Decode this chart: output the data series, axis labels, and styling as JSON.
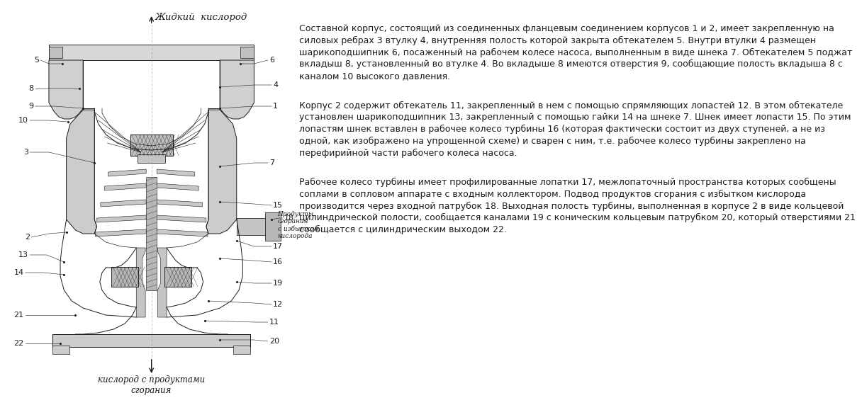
{
  "bg_color": "#ffffff",
  "text_color": "#1a1a1a",
  "line_color": "#1a1a1a",
  "title_top": "Жидкий  кислород",
  "title_bottom_line1": "кислород с продуктами",
  "title_bottom_line2": "сгорания",
  "label_inlet_line1": "Продукты",
  "label_inlet_line2": "сгорания",
  "label_inlet_line3": "с избытком",
  "label_inlet_line4": "кислорода",
  "para1_lines": [
    "Составной корпус, состоящий из соединенных фланцевым соединением корпусов 1 и 2, имеет закрепленную на",
    "силовых ребрах 3 втулку 4, внутренняя полость которой закрыта обтекателем 5. Внутри втулки 4 размещен",
    "шарикоподшипник 6, посаженный на рабочем колесе насоса, выполненным в виде шнека 7. Обтекателем 5 поджат",
    "вкладыш 8, установленный во втулке 4. Во вкладыше 8 имеются отверстия 9, сообщающие полость вкладыша 8 с",
    "каналом 10 высокого давления."
  ],
  "para2_lines": [
    "Корпус 2 содержит обтекатель 11, закрепленный в нем с помощью спрямляющих лопастей 12. В этом обтекателе",
    "установлен шарикоподшипник 13, закрепленный с помощью гайки 14 на шнеке 7. Шнек имеет лопасти 15. По этим",
    "лопастям шнек вставлен в рабочее колесо турбины 16 (которая фактически состоит из двух ступеней, а не из",
    "одной, как изображено на упрощенной схеме) и сварен с ним, т.е. рабочее колесо турбины закреплено на",
    "перефирийной части рабочего колеса насоса."
  ],
  "para3_lines": [
    "Рабочее колесо турбины имеет профилированные лопатки 17, межлопаточный пространства которых сообщены",
    "соплами в сопловом аппарате с входным коллектором. Подвод продуктов сгорания с избытком кислорода",
    "производится через входной патрубок 18. Выходная полость турбины, выполненная в корпусе 2 в виде кольцевой",
    "цилиндрической полости, сообщается каналами 19 с коническим кольцевым патрубком 20, который отверстиями 21",
    "сообщается с цилиндрическим выходом 22."
  ],
  "font_size_labels": 8.0,
  "font_size_text": 9.0,
  "font_size_title": 9.5
}
